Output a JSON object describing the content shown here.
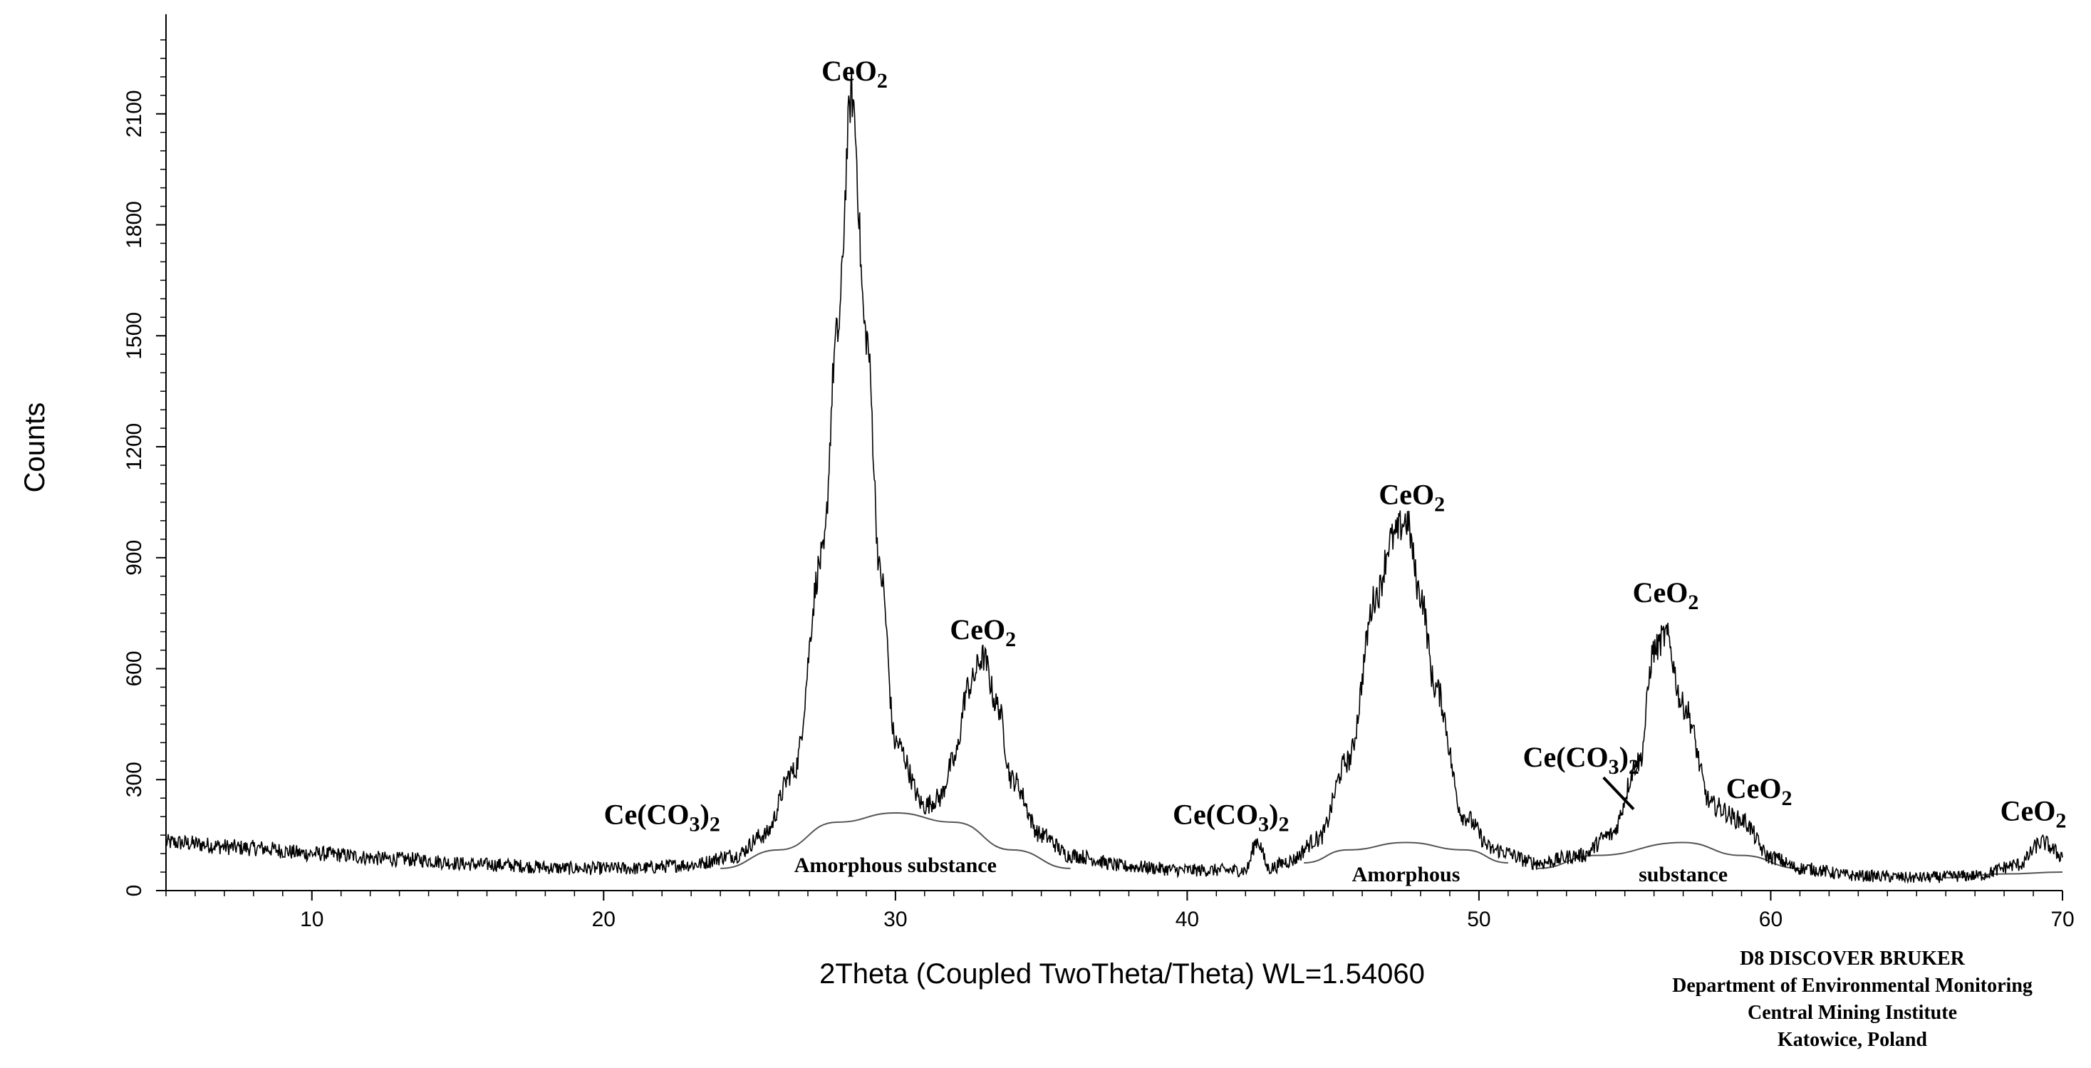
{
  "chart_data": {
    "type": "line",
    "title": "",
    "xlabel": "2Theta (Coupled TwoTheta/Theta) WL=1.54060",
    "ylabel": "Counts",
    "xlim": [
      5,
      70
    ],
    "ylim": [
      0,
      2350
    ],
    "x_ticks": [
      10,
      20,
      30,
      40,
      50,
      60,
      70
    ],
    "y_ticks": [
      0,
      300,
      600,
      900,
      1200,
      1500,
      1800,
      2100
    ],
    "grid": false,
    "legend": "none",
    "line_color": "#000000",
    "background_color": "#ffffff",
    "series": [
      {
        "values_note": "",
        "x": [
          5,
          8,
          10,
          13,
          16,
          19,
          21,
          23,
          24.5,
          25.5,
          26.5,
          27.5,
          28,
          28.5,
          29,
          29.5,
          30,
          31,
          31.5,
          32,
          32.5,
          33,
          33.5,
          34,
          35,
          36,
          38,
          40,
          42,
          42.4,
          42.8,
          43.5,
          44.5,
          45.5,
          46.5,
          47,
          47.5,
          48,
          48.5,
          49.5,
          50.5,
          52,
          53.5,
          54.5,
          55.5,
          56,
          56.4,
          57,
          58,
          59,
          60,
          61,
          63,
          65,
          67,
          68.5,
          69.3,
          70
        ],
        "y": [
          130,
          115,
          100,
          85,
          70,
          60,
          60,
          70,
          95,
          150,
          320,
          900,
          1500,
          2150,
          1500,
          850,
          400,
          230,
          250,
          350,
          550,
          630,
          500,
          300,
          150,
          95,
          65,
          55,
          55,
          135,
          60,
          80,
          140,
          350,
          800,
          950,
          1000,
          800,
          550,
          200,
          110,
          75,
          95,
          150,
          350,
          650,
          690,
          500,
          230,
          190,
          90,
          60,
          40,
          35,
          40,
          70,
          130,
          95
        ]
      }
    ],
    "amorphous_humps": [
      {
        "x": [
          24,
          26,
          28,
          30,
          32,
          34,
          36
        ],
        "y": [
          60,
          110,
          185,
          210,
          185,
          110,
          60
        ]
      },
      {
        "x": [
          44,
          45.5,
          47.5,
          49.5,
          51
        ],
        "y": [
          75,
          110,
          130,
          110,
          75
        ]
      },
      {
        "x": [
          52,
          54,
          57,
          59,
          61
        ],
        "y": [
          60,
          95,
          130,
          95,
          60
        ]
      },
      {
        "x": [
          66,
          68,
          70
        ],
        "y": [
          35,
          45,
          50
        ]
      }
    ],
    "annotations": [
      {
        "label": "CeO",
        "sub": "2",
        "x": 28.6,
        "y": 2190
      },
      {
        "label": "CeO",
        "sub": "2",
        "x": 33.0,
        "y": 680
      },
      {
        "label": "CeO",
        "sub": "2",
        "x": 47.7,
        "y": 1045
      },
      {
        "label": "CeO",
        "sub": "2",
        "x": 56.4,
        "y": 780
      },
      {
        "label": "CeO",
        "sub": "2",
        "x": 59.6,
        "y": 250
      },
      {
        "label": "CeO",
        "sub": "2",
        "x": 69.0,
        "y": 190
      },
      {
        "label": "Ce(CO",
        "sub": "3",
        "tail": ")",
        "sub2": "2",
        "x": 22.0,
        "y": 180
      },
      {
        "label": "Ce(CO",
        "sub": "3",
        "tail": ")",
        "sub2": "2",
        "x": 41.5,
        "y": 180
      },
      {
        "label": "Ce(CO",
        "sub": "3",
        "tail": ")",
        "sub2": "2",
        "x": 53.5,
        "y": 335
      }
    ],
    "region_labels": [
      {
        "text": "Amorphous substance",
        "x": 30.0,
        "y": 50
      },
      {
        "text": "Amorphous",
        "x": 47.5,
        "y": 25
      },
      {
        "text": "substance",
        "x": 57.0,
        "y": 25
      }
    ],
    "pointer": {
      "from": [
        55.0,
        325
      ],
      "to": [
        55.3,
        220
      ]
    }
  },
  "instrument_info": [
    "D8 DISCOVER BRUKER",
    "Department of Environmental Monitoring",
    "Central Mining Institute",
    "Katowice, Poland"
  ]
}
